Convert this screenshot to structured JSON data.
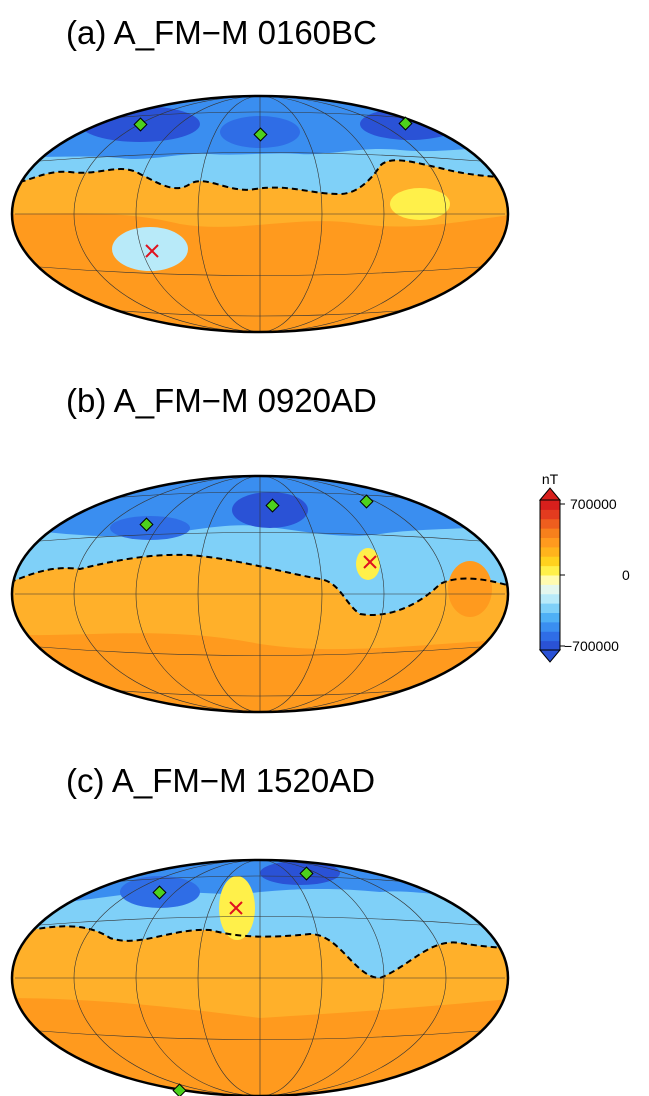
{
  "panels": [
    {
      "title": "(a) A_FM−M 0160BC"
    },
    {
      "title": "(b) A_FM−M 0920AD"
    },
    {
      "title": "(c) A_FM−M 1520AD"
    }
  ],
  "colorbar": {
    "unit": "nT",
    "max_label": "700000",
    "zero_label": "0",
    "min_label": "−700000",
    "colors": [
      "#2a52d6",
      "#2f6de6",
      "#3a8ef0",
      "#4fb0f5",
      "#7fd0f8",
      "#b8eaf9",
      "#e4f7ee",
      "#fffbb0",
      "#fff04a",
      "#ffd21e",
      "#ffb41c",
      "#ff9a1e",
      "#f7801c",
      "#ee5e1e",
      "#e33b1f",
      "#d81f1c"
    ]
  },
  "map": {
    "projection": "Hammer-Aitoff",
    "negative_color": "#5aaaf0",
    "positive_color": "#ffb02a",
    "zero_contour": "dashed black line",
    "markers": {
      "diamond": "green diamond",
      "cross": "red x"
    }
  }
}
